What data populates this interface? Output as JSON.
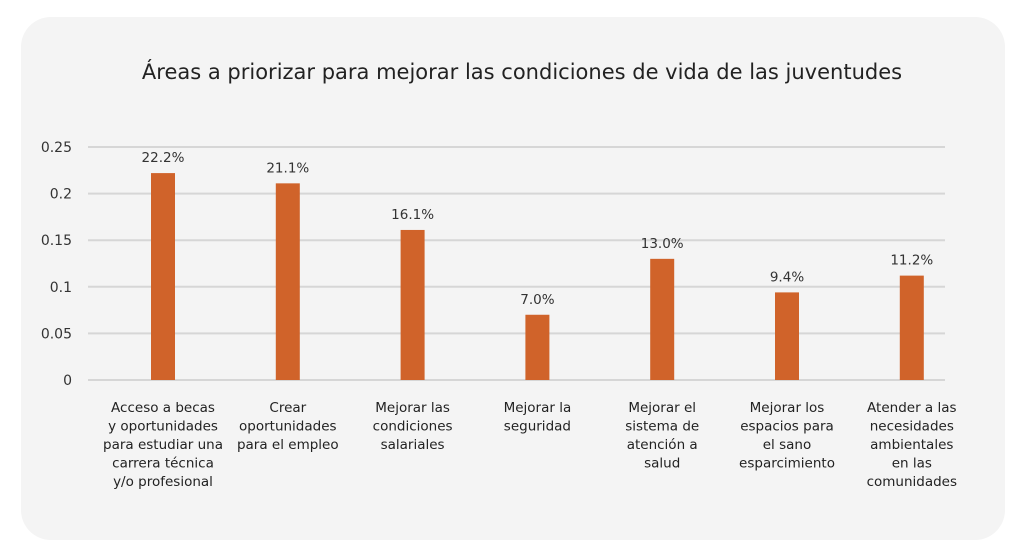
{
  "chart_data": {
    "type": "bar",
    "title": "Áreas a priorizar para mejorar las condiciones de vida de las juventudes",
    "categories": [
      [
        "Acceso a becas",
        "y oportunidades",
        "para estudiar una",
        "carrera técnica",
        "y/o profesional"
      ],
      [
        "Crear",
        "oportunidades",
        "para el empleo"
      ],
      [
        "Mejorar las",
        "condiciones",
        "salariales"
      ],
      [
        "Mejorar la",
        "seguridad"
      ],
      [
        "Mejorar el",
        "sistema de",
        "atención a",
        "salud"
      ],
      [
        "Mejorar los",
        "espacios para",
        "el sano",
        "esparcimiento"
      ],
      [
        "Atender a las",
        "necesidades",
        "ambientales",
        "en las",
        "comunidades"
      ]
    ],
    "values": [
      0.222,
      0.211,
      0.161,
      0.07,
      0.13,
      0.094,
      0.112
    ],
    "data_labels": [
      "22.2%",
      "21.1%",
      "16.1%",
      "7.0%",
      "13.0%",
      "9.4%",
      "11.2%"
    ],
    "yticks": [
      "0",
      "0.05",
      "0.1",
      "0.15",
      "0.2",
      "0.25"
    ],
    "ylim": [
      0,
      0.25
    ],
    "grid": true,
    "legend": "none",
    "bar_color": "#d0632a"
  }
}
